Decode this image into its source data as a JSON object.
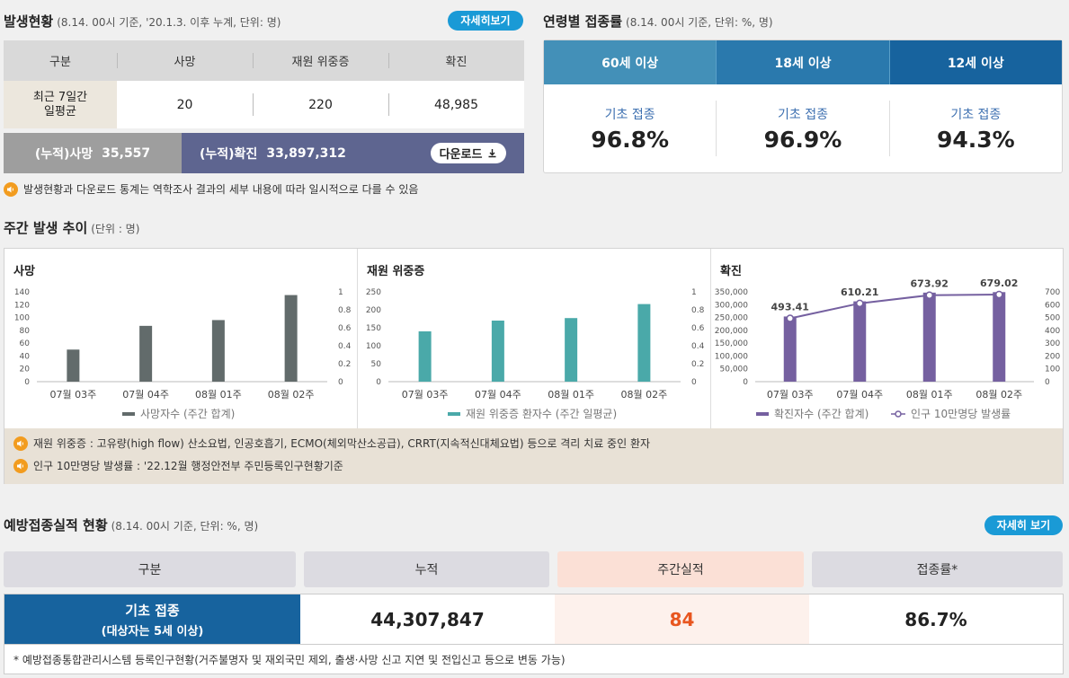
{
  "outbreak": {
    "title": "발생현황",
    "subtitle": "(8.14. 00시 기준, '20.1.3. 이후 누계, 단위: 명)",
    "detail_button": "자세히보기",
    "headers": [
      "구분",
      "사망",
      "재원 위중증",
      "확진"
    ],
    "row_label": [
      "최근 7일간",
      "일평균"
    ],
    "row_values": [
      "20",
      "220",
      "48,985"
    ],
    "cum_death_label": "(누적)사망",
    "cum_death_value": "35,557",
    "cum_confirmed_label": "(누적)확진",
    "cum_confirmed_value": "33,897,312",
    "download_label": "다운로드",
    "notice": "발생현황과 다운로드 통계는 역학조사 결과의 세부 내용에 따라 일시적으로 다를 수 있음"
  },
  "age_vaccination": {
    "title": "연령별 접종률",
    "subtitle": "(8.14. 00시 기준, 단위: %, 명)",
    "tabs": [
      {
        "label": "60세 이상",
        "color": "#4390b8"
      },
      {
        "label": "18세 이상",
        "color": "#2a79ad"
      },
      {
        "label": "12세 이상",
        "color": "#17639e"
      }
    ],
    "items": [
      {
        "label": "기초 접종",
        "value": "96.8%"
      },
      {
        "label": "기초 접종",
        "value": "96.9%"
      },
      {
        "label": "기초 접종",
        "value": "94.3%"
      }
    ]
  },
  "weekly": {
    "title": "주간 발생 추이",
    "subtitle": "(단위 : 명)",
    "notes": [
      "재원 위중증 : 고유량(high flow) 산소요법, 인공호흡기, ECMO(체외막산소공급), CRRT(지속적신대체요법) 등으로 격리 치료 중인 환자",
      "인구 10만명당 발생률 : '22.12월 행정안전부 주민등록인구현황기준"
    ]
  },
  "chart_data": [
    {
      "type": "bar",
      "title": "사망",
      "categories": [
        "07월 03주",
        "07월 04주",
        "08월 01주",
        "08월 02주"
      ],
      "series": [
        {
          "name": "사망자수 (주간 합계)",
          "values": [
            50,
            87,
            96,
            135
          ],
          "color": "#626b6b"
        }
      ],
      "ylim": [
        0,
        140
      ],
      "yticks": [
        "140",
        "120",
        "100",
        "80",
        "60",
        "40",
        "20",
        "0"
      ],
      "y2ticks": [
        "1",
        "0.8",
        "0.6",
        "0.4",
        "0.2",
        "0"
      ],
      "legend": "bottom",
      "grid": false
    },
    {
      "type": "bar",
      "title": "재원 위중증",
      "categories": [
        "07월 03주",
        "07월 04주",
        "08월 01주",
        "08월 02주"
      ],
      "series": [
        {
          "name": "재원 위중증 환자수 (주간 일평균)",
          "values": [
            140,
            170,
            177,
            216
          ],
          "color": "#4aa9a9"
        }
      ],
      "ylim": [
        0,
        250
      ],
      "yticks": [
        "250",
        "200",
        "150",
        "100",
        "50",
        "0"
      ],
      "y2ticks": [
        "1",
        "0.8",
        "0.6",
        "0.4",
        "0.2",
        "0"
      ],
      "legend": "bottom",
      "grid": false
    },
    {
      "type": "bar",
      "title": "확진",
      "categories": [
        "07월 03주",
        "07월 04주",
        "08월 01주",
        "08월 02주"
      ],
      "series": [
        {
          "name": "확진자수 (주간 합계)",
          "values": [
            254000,
            313000,
            347000,
            349000
          ],
          "color": "#7560a0"
        },
        {
          "name": "인구 10만명당 발생률",
          "values": [
            493.41,
            610.21,
            673.92,
            679.02
          ],
          "color": "#7560a0",
          "labels": [
            "493.41",
            "610.21",
            "673.92",
            "679.02"
          ]
        }
      ],
      "ylim": [
        0,
        350000
      ],
      "y2lim": [
        0,
        700
      ],
      "yticks": [
        "350,000",
        "300,000",
        "250,000",
        "200,000",
        "150,000",
        "100,000",
        "50,000",
        "0"
      ],
      "y2ticks": [
        "700",
        "600",
        "500",
        "400",
        "300",
        "200",
        "100",
        "0"
      ],
      "legend": "bottom",
      "grid": false
    }
  ],
  "performance": {
    "title": "예방접종실적 현황",
    "subtitle": "(8.14. 00시 기준, 단위: %, 명)",
    "detail_button": "자세히 보기",
    "headers": [
      "구분",
      "누적",
      "주간실적",
      "접종률*"
    ],
    "row_label": "기초 접종",
    "row_sublabel": "(대상자는 5세 이상)",
    "cumulative": "44,307,847",
    "weekly": "84",
    "rate": "86.7%",
    "footnote": "* 예방접종통합관리시스템 등록인구현황(거주불명자 및 재외국민 제외, 출생·사망 신고 지연 및 전입신고 등으로 변동 가능)"
  }
}
